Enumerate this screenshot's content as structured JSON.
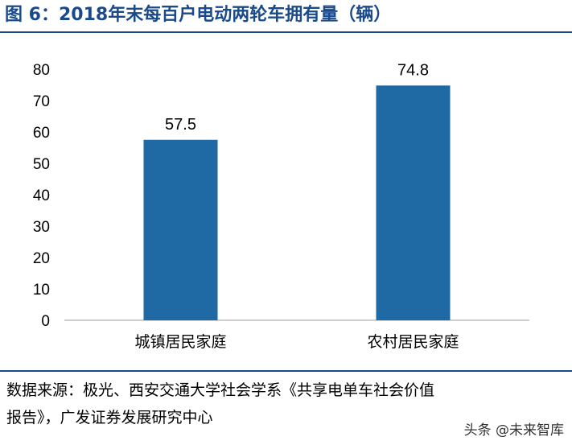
{
  "header": {
    "title": "图 6：2018年末每百户电动两轮车拥有量（辆）"
  },
  "chart_data": {
    "type": "bar",
    "title": "",
    "xlabel": "",
    "ylabel": "",
    "categories": [
      "城镇居民家庭",
      "农村居民家庭"
    ],
    "values": [
      57.5,
      74.8
    ],
    "value_labels": [
      "57.5",
      "74.8"
    ],
    "ylim": [
      0,
      80
    ],
    "yticks": [
      "0",
      "10",
      "20",
      "30",
      "40",
      "50",
      "60",
      "70",
      "80"
    ],
    "grid": false,
    "legend": "none",
    "bar_color": "#1f6aa5"
  },
  "footer": {
    "source_line1": "数据来源：极光、西安交通大学社会学系《共享电单车社会价值",
    "source_line2": "报告》，广发证券发展研究中心",
    "watermark": "头条 @未来智库"
  },
  "colors": {
    "title": "#1a4a8a",
    "rule": "#1a4a8a",
    "bar": "#1f6aa5",
    "axis": "#bfbfbf"
  }
}
